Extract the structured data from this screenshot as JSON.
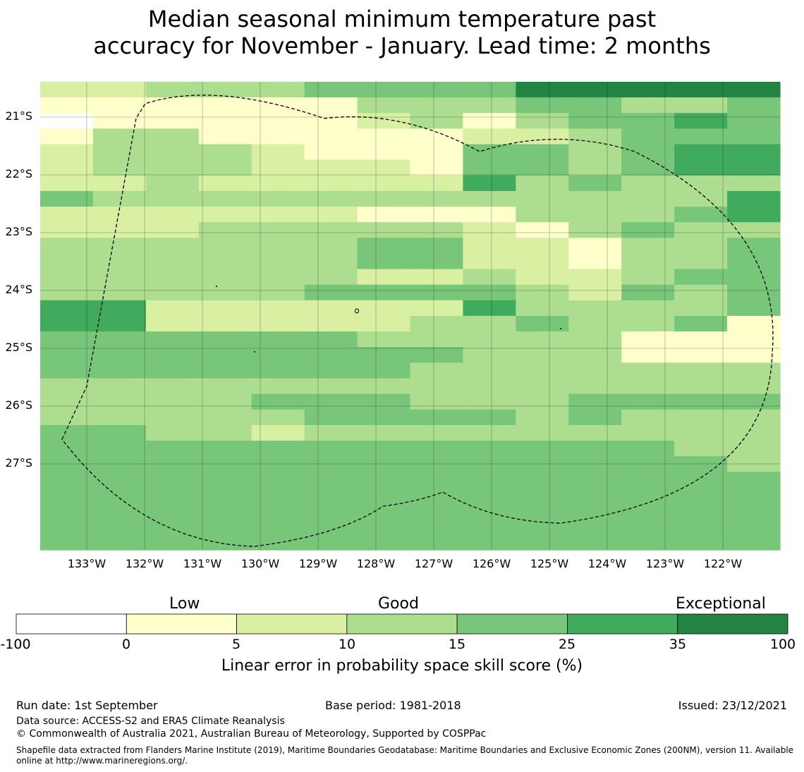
{
  "title_line1": "Median seasonal minimum temperature past",
  "title_line2": "accuracy for November - January. Lead time: 2 months",
  "map": {
    "lon_range": [
      -133.8,
      -120.9
    ],
    "lat_range": [
      -28.5,
      -20.4
    ],
    "cell_size_deg": 0.5555,
    "lat_labels": [
      "21°S",
      "22°S",
      "23°S",
      "24°S",
      "25°S",
      "26°S",
      "27°S"
    ],
    "lon_labels": [
      "133°W",
      "132°W",
      "131°W",
      "130°W",
      "129°W",
      "128°W",
      "127°W",
      "126°W",
      "125°W",
      "124°W",
      "123°W",
      "122°W"
    ],
    "grid_rows": [
      "11222333355555",
      "00000022233223",
      "N0000012023343",
      "02200000112333",
      "12221000332344",
      "12221110332344",
      "11211111423222",
      "32222222222224",
      "11111100022234",
      "11122222102322",
      "22222233110223",
      "22222233110223",
      "22222211211233",
      "22222333321323",
      "44111111422223",
      "44111112232230",
      "33333322222000",
      "33333333222000",
      "33333332222222",
      "22222222222222",
      "22223332223333",
      "22222333323222",
      "33221222222222",
      "33333333333322",
      "33333333333332",
      "33333333333333",
      "33333333333333",
      "33333333333333",
      "33333333333333",
      "33333333333333"
    ]
  },
  "colorbar": {
    "categories": [
      "Low",
      "Good",
      "Exceptional"
    ],
    "ticks": [
      "-100",
      "0",
      "5",
      "10",
      "15",
      "25",
      "35",
      "100"
    ],
    "colors": [
      "#ffffff",
      "#ffffcc",
      "#d9f0a3",
      "#addd8e",
      "#78c679",
      "#41ab5d",
      "#238443"
    ],
    "label": "Linear error in probability space skill score (%)"
  },
  "footer": {
    "run_date": "Run date: 1st September",
    "base_period": "Base period: 1981-2018",
    "issued": "Issued: 23/12/2021",
    "data_source": "Data source: ACCESS-S2 and ERA5 Climate Reanalysis",
    "copyright": "© Commonwealth of Australia 2021, Australian Bureau of Meteorology, Supported by COSPPac",
    "shapefile": "Shapefile data extracted from Flanders Marine Institute (2019), Maritime Boundaries Geodatabase: Maritime Boundaries and Exclusive Economic Zones (200NM), version 11. Available online at http://www.marineregions.org/."
  }
}
